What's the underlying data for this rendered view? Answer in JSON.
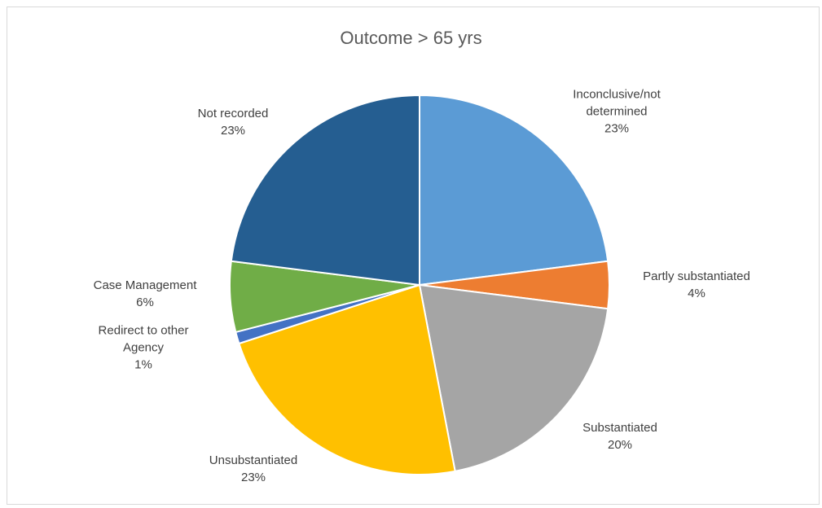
{
  "chart_data": {
    "type": "pie",
    "title": "Outcome > 65 yrs",
    "categories": [
      "Inconclusive/not determined",
      "Partly substantiated",
      "Substantiated",
      "Unsubstantiated",
      "Redirect to other Agency",
      "Case Management",
      "Not recorded"
    ],
    "values": [
      23,
      4,
      20,
      23,
      1,
      6,
      23
    ],
    "value_labels": [
      "23%",
      "4%",
      "20%",
      "23%",
      "1%",
      "6%",
      "23%"
    ],
    "colors": [
      "#5b9bd5",
      "#ed7d31",
      "#a5a5a5",
      "#ffc000",
      "#4472c4",
      "#70ad47",
      "#255e91"
    ]
  }
}
